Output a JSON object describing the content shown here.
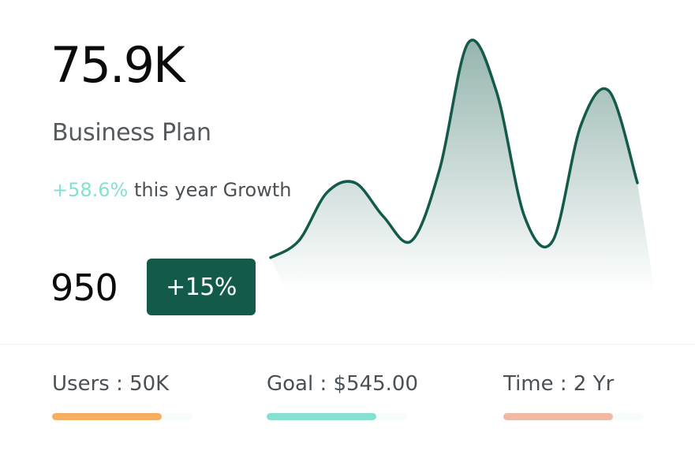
{
  "card": {
    "value": "75.9K",
    "title": "Business Plan",
    "growth_pct": "+58.6%",
    "growth_text": "this year Growth",
    "count": "950",
    "change_badge": "+15%"
  },
  "chart_data": {
    "type": "area",
    "color": "#145a4b",
    "x": [
      0,
      1,
      2,
      3,
      4,
      5,
      6,
      7,
      8,
      9,
      10,
      11,
      12,
      13
    ],
    "values": [
      3,
      10,
      30,
      34,
      20,
      10,
      40,
      92,
      72,
      20,
      10,
      58,
      72,
      34
    ],
    "ylim": [
      0,
      100
    ]
  },
  "stats": [
    {
      "label": "Users : 50K",
      "progress": 0.78,
      "color": "#f6ae62"
    },
    {
      "label": "Goal : $545.00",
      "progress": 0.78,
      "color": "#86e0cf"
    },
    {
      "label": "Time : 2 Yr",
      "progress": 0.78,
      "color": "#f0b9a3"
    }
  ]
}
